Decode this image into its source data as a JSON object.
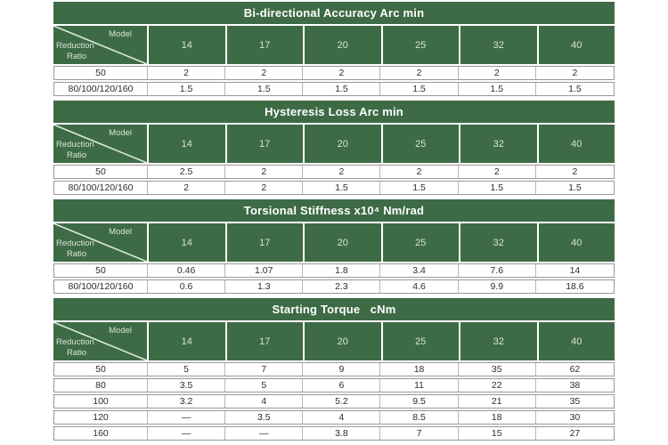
{
  "theme": {
    "green": "#3d6b45",
    "title_text": "#ffffff",
    "header_text": "#d7e4d7",
    "diag_line": "#dfe9df",
    "row_border": "#989898",
    "cell_divider": "#b5b5b5",
    "data_text": "#2d2d2d",
    "page_background": "#ffffff"
  },
  "corner": {
    "model_label": "Model",
    "ratio_label_line1": "Reduction",
    "ratio_label_line2": "Ratio"
  },
  "tables": [
    {
      "title": "Bi-directional Accuracy Arc min",
      "models": [
        "14",
        "17",
        "20",
        "25",
        "32",
        "40"
      ],
      "rows": [
        [
          "50",
          "2",
          "2",
          "2",
          "2",
          "2",
          "2"
        ],
        [
          "80/100/120/160",
          "1.5",
          "1.5",
          "1.5",
          "1.5",
          "1.5",
          "1.5"
        ]
      ]
    },
    {
      "title": "Hysteresis Loss Arc min",
      "models": [
        "14",
        "17",
        "20",
        "25",
        "32",
        "40"
      ],
      "rows": [
        [
          "50",
          "2.5",
          "2",
          "2",
          "2",
          "2",
          "2"
        ],
        [
          "80/100/120/160",
          "2",
          "2",
          "1.5",
          "1.5",
          "1.5",
          "1.5"
        ]
      ]
    },
    {
      "title": "Torsional Stiffness x10⁴ Nm/rad",
      "models": [
        "14",
        "17",
        "20",
        "25",
        "32",
        "40"
      ],
      "rows": [
        [
          "50",
          "0.46",
          "1.07",
          "1.8",
          "3.4",
          "7.6",
          "14"
        ],
        [
          "80/100/120/160",
          "0.6",
          "1.3",
          "2.3",
          "4.6",
          "9.9",
          "18.6"
        ]
      ]
    },
    {
      "title": "Starting Torque   cNm",
      "models": [
        "14",
        "17",
        "20",
        "25",
        "32",
        "40"
      ],
      "rows": [
        [
          "50",
          "5",
          "7",
          "9",
          "18",
          "35",
          "62"
        ],
        [
          "80",
          "3.5",
          "5",
          "6",
          "11",
          "22",
          "38"
        ],
        [
          "100",
          "3.2",
          "4",
          "5.2",
          "9.5",
          "21",
          "35"
        ],
        [
          "120",
          "—",
          "3.5",
          "4",
          "8.5",
          "18",
          "30"
        ],
        [
          "160",
          "—",
          "—",
          "3.8",
          "7",
          "15",
          "27"
        ]
      ]
    }
  ]
}
